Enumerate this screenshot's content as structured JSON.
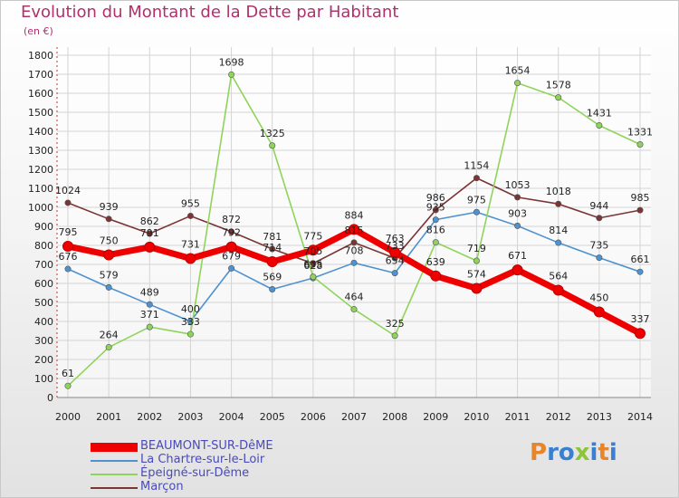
{
  "header": {
    "title": "Evolution du Montant de la Dette par Habitant",
    "subtitle": "(en €)"
  },
  "logo": {
    "text": "Proxiti",
    "colors": [
      "#e8842a",
      "#3a7fd0",
      "#3a7fd0",
      "#8cc43a",
      "#3a7fd0",
      "#e8842a",
      "#3a7fd0"
    ]
  },
  "chart_data": {
    "type": "line",
    "x": [
      "2000",
      "2001",
      "2002",
      "2003",
      "2004",
      "2005",
      "2006",
      "2007",
      "2008",
      "2009",
      "2010",
      "2011",
      "2012",
      "2013",
      "2014"
    ],
    "ylim": [
      0,
      1800
    ],
    "yticks": [
      0,
      100,
      200,
      300,
      400,
      500,
      600,
      700,
      800,
      900,
      1000,
      1100,
      1200,
      1300,
      1400,
      1500,
      1600,
      1700,
      1800
    ],
    "grid": true,
    "legend_position": "bottom-left",
    "series": [
      {
        "name": "Marçon",
        "color": "#7a3535",
        "values": [
          1024,
          939,
          862,
          955,
          872,
          781,
          705,
          815,
          733,
          986,
          1154,
          1053,
          1018,
          944,
          985
        ]
      },
      {
        "name": "La Chartre-sur-le-Loir",
        "color": "#4e93d0",
        "values": [
          676,
          579,
          489,
          400,
          679,
          569,
          628,
          708,
          654,
          935,
          975,
          903,
          814,
          735,
          661
        ]
      },
      {
        "name": "Épeigné-sur-Dême",
        "color": "#8fd45a",
        "values": [
          61,
          264,
          371,
          333,
          1698,
          1325,
          635,
          464,
          325,
          816,
          719,
          1654,
          1578,
          1431,
          1331
        ]
      },
      {
        "name": "BEAUMONT-SUR-DêME",
        "color": "#ee0000",
        "values": [
          795,
          750,
          791,
          731,
          792,
          714,
          775,
          884,
          763,
          639,
          574,
          671,
          564,
          450,
          337
        ]
      }
    ],
    "data_labels": [
      [
        "1024",
        "939",
        "862",
        "955",
        "872",
        "781",
        "705",
        "815",
        "733",
        "986",
        "1154",
        "1053",
        "1018",
        "944",
        "985"
      ],
      [
        "676",
        "579",
        "489",
        "400",
        "679",
        "569",
        "628",
        "708",
        "654",
        "935",
        "975",
        "903",
        "814",
        "735",
        "661"
      ],
      [
        "61",
        "264",
        "371",
        "333",
        "1698",
        "1325",
        "635",
        "464",
        "325",
        "816",
        "719",
        "1654",
        "1578",
        "1431",
        "1331"
      ],
      [
        "795",
        "750",
        "791",
        "731",
        "792",
        "714",
        "775",
        "884",
        "763",
        "639",
        "574",
        "671",
        "564",
        "450",
        "337"
      ]
    ]
  },
  "legend": [
    {
      "label": "BEAUMONT-SUR-DêME",
      "color": "#ee0000",
      "thick": true
    },
    {
      "label": "La Chartre-sur-le-Loir",
      "color": "#4e93d0",
      "thick": false
    },
    {
      "label": "Épeigné-sur-Dême",
      "color": "#8fd45a",
      "thick": false
    },
    {
      "label": "Marçon",
      "color": "#7a3535",
      "thick": false
    }
  ]
}
